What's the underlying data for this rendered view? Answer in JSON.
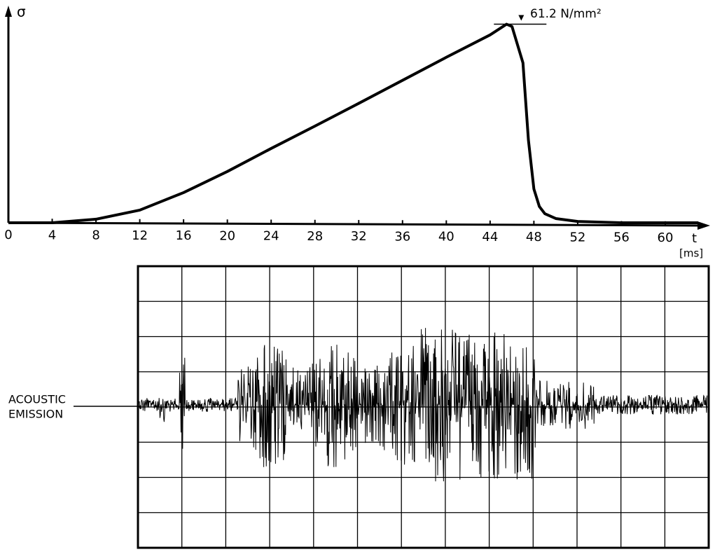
{
  "chart_data": {
    "type": "line",
    "y_label": "σ",
    "x_label": "t",
    "x_unit": "[ms]",
    "annotation": "61.2 N/mm²",
    "x": [
      0,
      4,
      8,
      12,
      16,
      20,
      24,
      28,
      32,
      36,
      40,
      44,
      45.5,
      46,
      47,
      47.5,
      48,
      48.5,
      49,
      50,
      52,
      56,
      60,
      63
    ],
    "values": [
      0,
      0,
      1.1,
      3.9,
      9.3,
      15.8,
      22.9,
      29.8,
      36.8,
      43.9,
      51,
      57.9,
      61.2,
      60.5,
      49.3,
      25.5,
      10.4,
      5,
      2.8,
      1.3,
      0.4,
      0,
      0,
      0
    ],
    "color": "#000000",
    "xlim": [
      0,
      64
    ],
    "ylim": [
      0,
      66.5
    ],
    "xticks": [
      0,
      4,
      8,
      12,
      16,
      20,
      24,
      28,
      32,
      36,
      40,
      44,
      48,
      52,
      56,
      60
    ]
  },
  "acoustic_emission": {
    "label": [
      "ACOUSTIC",
      "EMISSION"
    ]
  }
}
